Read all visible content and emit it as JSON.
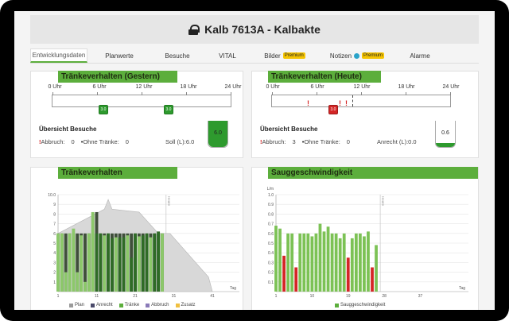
{
  "title": "Kalb 7613A - Kalbakte",
  "tabs": [
    {
      "label": "Entwicklungsdaten",
      "active": true
    },
    {
      "label": "Planwerte"
    },
    {
      "label": "Besuche"
    },
    {
      "label": "VITAL"
    },
    {
      "label": "Bilder",
      "badge": "Premium"
    },
    {
      "label": "Notizen",
      "badge": "Premium"
    },
    {
      "label": "Alarme"
    }
  ],
  "colors": {
    "accent": "#5cae3c",
    "danger": "#d42626",
    "drink": "#2e9a2e",
    "premium": "#f5c400"
  },
  "yesterday": {
    "title": "Tränkeverhalten (Gestern)",
    "hour_labels": [
      "0 Uhr",
      "6 Uhr",
      "12 Uhr",
      "18 Uhr",
      "24 Uhr"
    ],
    "drink_pills": [
      "3.0",
      "3.0"
    ],
    "overview_title": "Übersicht Besuche",
    "abbruch_label": "Abbruch:",
    "abbruch_value": "0",
    "ohne_label": "Ohne Tränke:",
    "ohne_value": "0",
    "soll_label": "Soll (L):",
    "soll_value": "6.0",
    "cup_value": "6.0",
    "cup_fill": 1.0
  },
  "today": {
    "title": "Tränkeverhalten (Heute)",
    "hour_labels": [
      "0 Uhr",
      "6 Uhr",
      "12 Uhr",
      "18 Uhr",
      "24 Uhr"
    ],
    "drink_pills": [
      "3.0"
    ],
    "overview_title": "Übersicht Besuche",
    "abbruch_label": "Abbruch:",
    "abbruch_value": "3",
    "ohne_label": "Ohne Tränke:",
    "ohne_value": "0",
    "anrecht_label": "Anrecht (L):",
    "anrecht_value": "0.0",
    "cup_value": "0.6",
    "cup_fill": 0.15
  },
  "chart_data": [
    {
      "type": "bar",
      "title": "Tränkeverhalten",
      "xlabel": "Tag",
      "ylabel": "",
      "ylim": [
        0,
        10
      ],
      "y_ticks": [
        "1",
        "2",
        "3",
        "4",
        "5",
        "6",
        "7",
        "8",
        "9",
        "10.0"
      ],
      "x_ticks": [
        "1",
        "11",
        "21",
        "31",
        "41"
      ],
      "marker_label": "Heute",
      "legend": [
        {
          "name": "Plan",
          "color": "#9a9a9a"
        },
        {
          "name": "Anrecht",
          "color": "#4a4a6a"
        },
        {
          "name": "Tränke",
          "color": "#5cae3c"
        },
        {
          "name": "Abbruch",
          "color": "#8a7ab8"
        },
        {
          "name": "Zusatz",
          "color": "#f0c040"
        }
      ],
      "plan": [
        [
          1,
          6
        ],
        [
          13,
          8.5
        ],
        [
          14,
          9.5
        ],
        [
          15,
          8.5
        ],
        [
          22,
          8.2
        ],
        [
          27,
          6
        ],
        [
          30,
          6
        ],
        [
          40,
          1.5
        ],
        [
          41,
          0
        ]
      ],
      "anrecht": [
        6,
        6,
        6,
        6,
        6,
        6,
        6,
        6,
        6,
        6,
        8.2,
        6,
        6,
        6,
        6,
        6,
        6,
        6,
        6,
        6,
        6,
        6,
        6,
        6,
        6,
        6,
        6,
        6
      ],
      "traenke": [
        6,
        6,
        2,
        6,
        6.5,
        2,
        5.8,
        1,
        6,
        8.2,
        6,
        6,
        5.8,
        6,
        5.5,
        5.6,
        5.6,
        5.6,
        5.8,
        3.5,
        6,
        5.7,
        5.8,
        6,
        5.6,
        6,
        6.2,
        6
      ]
    },
    {
      "type": "bar",
      "title": "Sauggeschwindigkeit",
      "xlabel": "Tag",
      "ylabel": "L/m",
      "ylim": [
        0,
        1
      ],
      "y_ticks": [
        "0.1",
        "0.2",
        "0.3",
        "0.4",
        "0.5",
        "0.6",
        "0.7",
        "0.8",
        "0.9",
        "1.0"
      ],
      "x_ticks": [
        "1",
        "10",
        "19",
        "28",
        "37"
      ],
      "marker_label": "Heute",
      "legend": [
        {
          "name": "Sauggeschwindigkeit",
          "color": "#5cae3c"
        }
      ],
      "values": [
        0.68,
        0.65,
        0.37,
        0.6,
        0.6,
        0.25,
        0.6,
        0.6,
        0.6,
        0.57,
        0.6,
        0.7,
        0.62,
        0.67,
        0.6,
        0.6,
        0.55,
        0.6,
        0.35,
        0.55,
        0.6,
        0.6,
        0.57,
        0.62,
        0.25,
        0.48
      ],
      "red_days": [
        3,
        6,
        19,
        25
      ]
    }
  ]
}
